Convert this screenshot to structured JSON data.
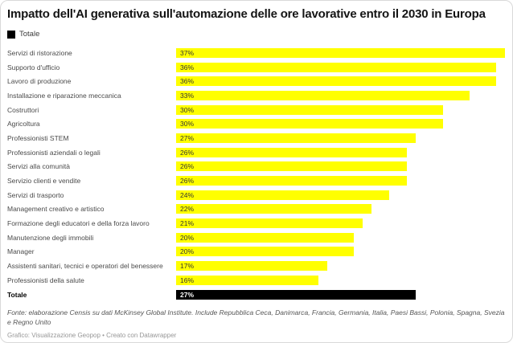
{
  "header": {
    "title": "Impatto dell'AI generativa sull'automazione delle ore lavorative entro il 2030 in Europa"
  },
  "legend": {
    "label": "Totale",
    "swatch_color": "#000000"
  },
  "colors": {
    "bar": "#ffff00",
    "bar_value_label": "#333333",
    "total_bar": "#000000",
    "total_value_label": "#ffffff"
  },
  "chart_data": {
    "type": "bar",
    "orientation": "horizontal",
    "title": "Impatto dell'AI generativa sull'automazione delle ore lavorative entro il 2030 in Europa",
    "value_suffix": "%",
    "xlim": [
      0,
      37
    ],
    "grid": false,
    "axis_visible": false,
    "highlight_category": "Totale",
    "categories": [
      "Servizi di ristorazione",
      "Supporto d'ufficio",
      "Lavoro di produzione",
      "Installazione e riparazione meccanica",
      "Costruttori",
      "Agricoltura",
      "Professionisti STEM",
      "Professionisti aziendali o legali",
      "Servizi alla comunità",
      "Servizio clienti e vendite",
      "Servizi di trasporto",
      "Management creativo e artistico",
      "Formazione degli educatori e della forza lavoro",
      "Manutenzione degli immobili",
      "Manager",
      "Assistenti sanitari, tecnici e operatori del benessere",
      "Professionisti della salute",
      "Totale"
    ],
    "values": [
      37,
      36,
      36,
      33,
      30,
      30,
      27,
      26,
      26,
      26,
      24,
      22,
      21,
      20,
      20,
      17,
      16,
      27
    ]
  },
  "footer": {
    "source": "Fonte: elaborazione Censis su dati McKinsey Global Institute. Include Repubblica Ceca, Danimarca, Francia, Germania, Italia, Paesi Bassi, Polonia, Spagna, Svezia e Regno Unito",
    "credit": "Grafico: Visualizzazione Geopop • Creato con Datawrapper"
  }
}
